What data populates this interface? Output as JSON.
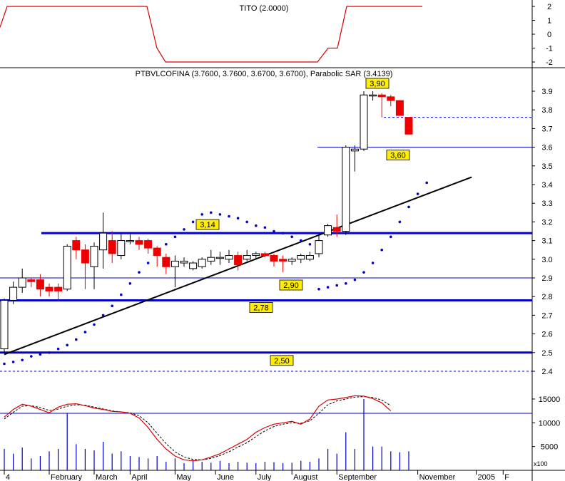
{
  "chart_data": [
    {
      "panel": "indicator-top",
      "type": "line",
      "title": "TITO (2.0000)",
      "yticks": [
        2,
        1,
        0,
        -1,
        -2
      ],
      "ylim": [
        -2,
        2
      ],
      "color": "#dd0000",
      "points": [
        [
          0,
          0.5
        ],
        [
          10,
          2
        ],
        [
          206,
          2
        ],
        [
          220,
          -1
        ],
        [
          232,
          -2
        ],
        [
          445,
          -2
        ],
        [
          460,
          -1
        ],
        [
          473,
          -1
        ],
        [
          486,
          2
        ],
        [
          592,
          2
        ]
      ]
    },
    {
      "panel": "price",
      "type": "candlestick",
      "title": "PTBVLCOFINA (3.7600, 3.7600, 3.6700, 3.6700), Parabolic SAR (3.4139)",
      "yticks": [
        "3.9",
        "3.8",
        "3.7",
        "3.6",
        "3.5",
        "3.4",
        "3.3",
        "3.2",
        "3.1",
        "3.0",
        "2.9",
        "2.8",
        "2.7",
        "2.6",
        "2.5",
        "2.4"
      ],
      "ylim": [
        2.36,
        3.97
      ],
      "candles": [
        [
          0,
          2.52,
          2.78,
          2.5,
          2.79
        ],
        [
          1,
          2.78,
          2.85,
          2.76,
          2.88
        ],
        [
          2,
          2.85,
          2.9,
          2.82,
          2.95
        ],
        [
          3,
          2.89,
          2.88,
          2.85,
          2.9
        ],
        [
          4,
          2.89,
          2.84,
          2.8,
          2.92
        ],
        [
          5,
          2.85,
          2.83,
          2.8,
          2.87
        ],
        [
          6,
          2.85,
          2.83,
          2.78,
          2.87
        ],
        [
          7,
          2.84,
          3.07,
          2.83,
          3.08
        ],
        [
          8,
          3.1,
          3.05,
          3.0,
          3.12
        ],
        [
          9,
          3.05,
          2.98,
          2.84,
          3.08
        ],
        [
          10,
          2.96,
          3.07,
          2.84,
          3.09
        ],
        [
          11,
          3.05,
          3.14,
          2.95,
          3.25
        ],
        [
          12,
          3.1,
          3.03,
          2.98,
          3.15
        ],
        [
          13,
          3.02,
          3.1,
          3.0,
          3.14
        ],
        [
          14,
          3.1,
          3.1,
          3.08,
          3.14
        ],
        [
          15,
          3.1,
          3.08,
          3.05,
          3.12
        ],
        [
          16,
          3.1,
          3.06,
          3.03,
          3.11
        ],
        [
          17,
          3.06,
          3.02,
          2.96,
          3.07
        ],
        [
          18,
          3.01,
          2.96,
          2.92,
          3.03
        ],
        [
          19,
          2.96,
          2.99,
          2.85,
          3.02
        ],
        [
          20,
          2.98,
          2.99,
          2.96,
          3.01
        ],
        [
          21,
          2.95,
          2.98,
          2.94,
          2.99
        ],
        [
          22,
          2.96,
          3.0,
          2.95,
          3.01
        ],
        [
          23,
          2.99,
          3.01,
          2.97,
          3.05
        ],
        [
          24,
          3.01,
          3.01,
          2.97,
          3.04
        ],
        [
          25,
          3.0,
          3.02,
          2.98,
          3.05
        ],
        [
          26,
          3.02,
          2.97,
          2.94,
          3.04
        ],
        [
          27,
          3.0,
          3.02,
          2.99,
          3.05
        ],
        [
          28,
          3.02,
          3.03,
          3.0,
          3.04
        ],
        [
          29,
          3.03,
          3.02,
          3.01,
          3.04
        ],
        [
          30,
          3.02,
          2.99,
          2.96,
          3.03
        ],
        [
          31,
          3.0,
          2.99,
          2.93,
          3.02
        ],
        [
          32,
          2.99,
          3.0,
          2.97,
          3.01
        ],
        [
          33,
          3.0,
          3.02,
          2.98,
          3.03
        ],
        [
          34,
          3.0,
          3.02,
          2.99,
          3.04
        ],
        [
          35,
          3.03,
          3.1,
          3.01,
          3.13
        ],
        [
          36,
          3.13,
          3.18,
          3.12,
          3.19
        ],
        [
          37,
          3.17,
          3.15,
          3.12,
          3.24
        ],
        [
          38,
          3.15,
          3.6,
          3.13,
          3.61
        ],
        [
          39,
          3.58,
          3.59,
          3.47,
          3.61
        ],
        [
          40,
          3.59,
          3.88,
          3.58,
          3.9
        ],
        [
          41,
          3.88,
          3.88,
          3.85,
          3.9
        ],
        [
          42,
          3.88,
          3.87,
          3.76,
          3.89
        ],
        [
          43,
          3.87,
          3.85,
          3.82,
          3.88
        ],
        [
          44,
          3.85,
          3.77,
          3.77,
          3.85
        ],
        [
          45,
          3.76,
          3.67,
          3.67,
          3.76
        ]
      ],
      "sar": [
        [
          0,
          2.44
        ],
        [
          1,
          2.45
        ],
        [
          2,
          2.46
        ],
        [
          3,
          2.48
        ],
        [
          4,
          2.49
        ],
        [
          5,
          2.5
        ],
        [
          6,
          2.52
        ],
        [
          7,
          2.54
        ],
        [
          8,
          2.57
        ],
        [
          9,
          2.61
        ],
        [
          10,
          2.65
        ],
        [
          11,
          2.7
        ],
        [
          12,
          2.75
        ],
        [
          13,
          2.81
        ],
        [
          14,
          2.87
        ],
        [
          15,
          2.93
        ],
        [
          16,
          2.98
        ],
        [
          17,
          3.03
        ],
        [
          18,
          3.08
        ],
        [
          19,
          3.12
        ],
        [
          20,
          3.16
        ],
        [
          21,
          3.2
        ],
        [
          22,
          3.24
        ],
        [
          23,
          3.25
        ],
        [
          24,
          3.24
        ],
        [
          25,
          3.23
        ],
        [
          26,
          3.22
        ],
        [
          27,
          3.2
        ],
        [
          28,
          3.18
        ],
        [
          29,
          3.17
        ],
        [
          30,
          3.15
        ],
        [
          31,
          3.14
        ],
        [
          32,
          3.12
        ],
        [
          33,
          3.1
        ],
        [
          34,
          3.08
        ],
        [
          35,
          2.84
        ],
        [
          36,
          2.85
        ],
        [
          37,
          2.86
        ],
        [
          38,
          2.87
        ],
        [
          39,
          2.89
        ],
        [
          40,
          2.93
        ],
        [
          41,
          2.98
        ],
        [
          42,
          3.05
        ],
        [
          43,
          3.12
        ],
        [
          44,
          3.2
        ],
        [
          45,
          3.28
        ],
        [
          46,
          3.35
        ],
        [
          47,
          3.41
        ]
      ],
      "horizontal_lines": [
        {
          "value": 3.14,
          "label": "3,14",
          "style": "thick"
        },
        {
          "value": 2.78,
          "label": "2,78",
          "style": "thick"
        },
        {
          "value": 2.5,
          "label": "2,50",
          "style": "thick"
        },
        {
          "value": 2.9,
          "label": "2,90",
          "style": "thin"
        },
        {
          "value": 3.6,
          "label": "3,60",
          "style": "thin"
        },
        {
          "value": 2.4,
          "label": "",
          "style": "dashed"
        },
        {
          "value": 3.76,
          "label": "",
          "style": "dashed"
        }
      ],
      "price_labels": [
        {
          "value": 3.9,
          "label": "3,90"
        }
      ],
      "trendline": [
        [
          0,
          2.49
        ],
        [
          52,
          3.44
        ]
      ]
    },
    {
      "panel": "volume",
      "type": "line",
      "yticks": [
        "15000",
        "10000",
        "5000"
      ],
      "ylim": [
        0,
        18000
      ],
      "scale_note": "x100",
      "hline": 12000,
      "volume": [
        4500,
        3500,
        4800,
        2500,
        3000,
        4000,
        4500,
        12000,
        5500,
        4500,
        4200,
        6000,
        3500,
        4000,
        3000,
        2800,
        2500,
        3000,
        1800,
        2500,
        1500,
        2200,
        1800,
        1600,
        2000,
        1500,
        1800,
        1600,
        1500,
        1800,
        1700,
        1500,
        1600,
        2000,
        1800,
        2500,
        4500,
        3500,
        8000,
        4500,
        15000,
        5000,
        5000,
        4000,
        3800,
        4000
      ],
      "osc_main": [
        11200,
        12800,
        13900,
        13500,
        12800,
        12100,
        13300,
        13900,
        14000,
        13600,
        13100,
        12800,
        12400,
        12300,
        12000,
        11000,
        9000,
        6500,
        4500,
        3000,
        2200,
        2000,
        2200,
        2800,
        3500,
        4500,
        5500,
        6500,
        8000,
        9000,
        9700,
        10000,
        10300,
        9700,
        10800,
        13500,
        14800,
        15000,
        15300,
        15700,
        15600,
        15100,
        14200,
        12500
      ],
      "osc_signal": [
        10800,
        12200,
        13500,
        13600,
        13200,
        12600,
        12900,
        13500,
        13800,
        13700,
        13300,
        12900,
        12500,
        12300,
        12100,
        11500,
        10000,
        7800,
        5600,
        3900,
        2800,
        2300,
        2200,
        2500,
        3100,
        3900,
        4900,
        5800,
        7100,
        8300,
        9200,
        9700,
        10000,
        9900,
        10400,
        12000,
        13800,
        14600,
        15000,
        15400,
        15500,
        15300,
        14800,
        13600
      ]
    }
  ],
  "x_axis": {
    "labels": [
      {
        "pos": 0,
        "text": "4"
      },
      {
        "pos": 5,
        "text": "February"
      },
      {
        "pos": 10,
        "text": "March"
      },
      {
        "pos": 14,
        "text": "April"
      },
      {
        "pos": 19,
        "text": "May"
      },
      {
        "pos": 23.5,
        "text": "June"
      },
      {
        "pos": 28,
        "text": "July"
      },
      {
        "pos": 32,
        "text": "August"
      },
      {
        "pos": 37,
        "text": "September"
      },
      {
        "pos": 46,
        "text": "November"
      },
      {
        "pos": 52.5,
        "text": "2005"
      },
      {
        "pos": 55.5,
        "text": "F"
      }
    ]
  },
  "colors": {
    "down": "#ee0000",
    "sar": "#0000cc",
    "support": "#0000cc",
    "trendline": "#000000",
    "tito": "#dd0000",
    "osc_main": "#dd0000",
    "label_bg": "#ffee00"
  }
}
